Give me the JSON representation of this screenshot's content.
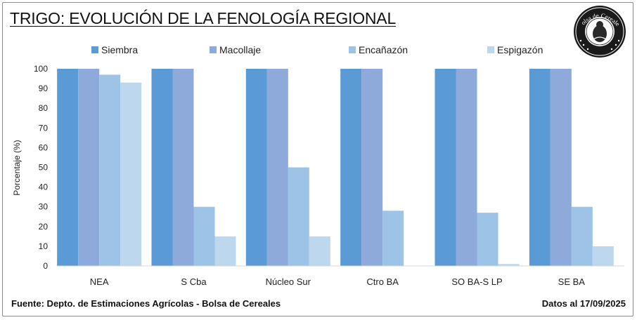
{
  "header": {
    "title": "TRIGO: EVOLUCIÓN DE LA FENOLOGÍA REGIONAL",
    "logo_text": "Bolsa de Cereales"
  },
  "footer": {
    "source": "Fuente: Depto. de Estimaciones Agrícolas - Bolsa de Cereales",
    "date": "Datos al 17/09/2025"
  },
  "chart_data": {
    "type": "bar",
    "title": "TRIGO: EVOLUCIÓN DE LA FENOLOGÍA REGIONAL",
    "xlabel": "",
    "ylabel": "Porcentaje (%)",
    "ylim": [
      0,
      100
    ],
    "yticks": [
      0,
      10,
      20,
      30,
      40,
      50,
      60,
      70,
      80,
      90,
      100
    ],
    "grid": false,
    "legend_position": "top",
    "categories": [
      "NEA",
      "S Cba",
      "Núcleo Sur",
      "Ctro BA",
      "SO BA-S LP",
      "SE BA"
    ],
    "series": [
      {
        "name": "Siembra",
        "color": "#5b9bd5",
        "values": [
          100,
          100,
          100,
          100,
          100,
          100
        ]
      },
      {
        "name": "Macollaje",
        "color": "#8eaadb",
        "values": [
          100,
          100,
          100,
          100,
          100,
          100
        ]
      },
      {
        "name": "Encañazón",
        "color": "#9dc3e6",
        "values": [
          97,
          30,
          50,
          28,
          27,
          30
        ]
      },
      {
        "name": "Espigazón",
        "color": "#bdd7ee",
        "values": [
          93,
          15,
          15,
          0,
          1,
          10
        ]
      }
    ]
  }
}
